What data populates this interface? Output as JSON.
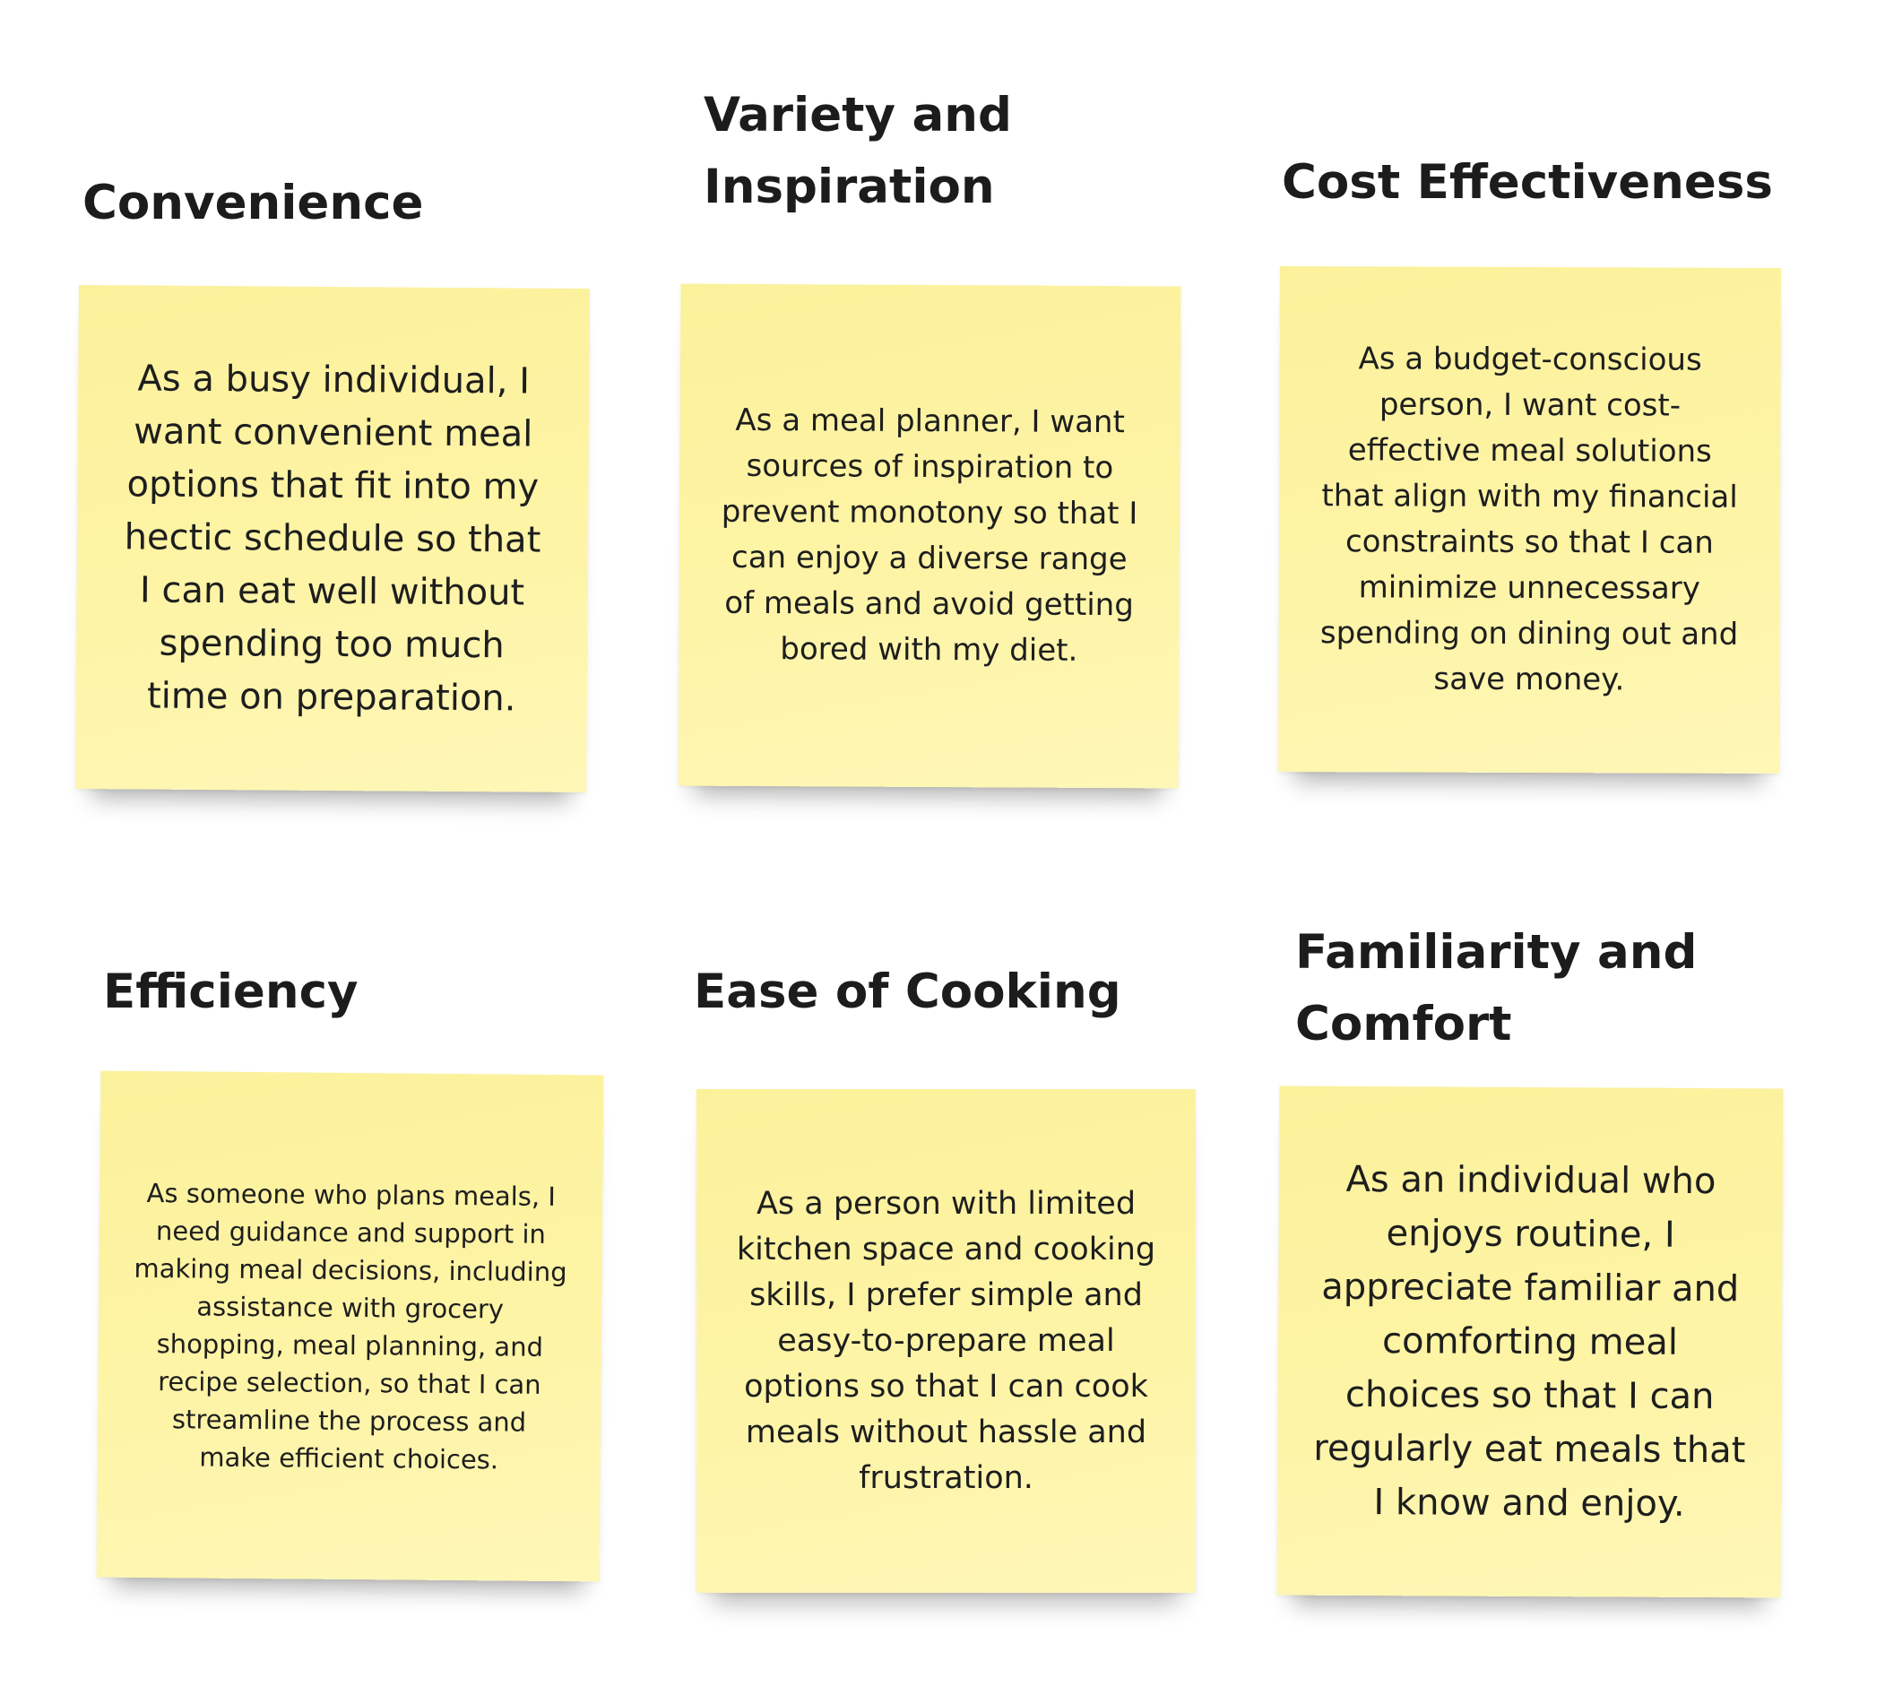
{
  "notes": [
    {
      "title": [
        "Convenience"
      ],
      "body": [
        "As a busy individual, I",
        "want convenient meal",
        "options that fit into my",
        "hectic schedule so that",
        "I can eat well without",
        "spending too much",
        "time on preparation."
      ]
    },
    {
      "title": [
        "Variety and",
        "Inspiration"
      ],
      "body": [
        "As a meal planner, I want",
        "sources of inspiration to",
        "prevent monotony so that I",
        "can enjoy a diverse range",
        "of meals and avoid getting",
        "bored with my diet."
      ]
    },
    {
      "title": [
        "Cost Effectiveness"
      ],
      "body": [
        "As a budget-conscious",
        "person, I want cost-",
        "effective meal solutions",
        "that align with my financial",
        "constraints so that I can",
        "minimize unnecessary",
        "spending on dining out and",
        "save money."
      ]
    },
    {
      "title": [
        "Efficiency"
      ],
      "body": [
        "As someone who plans meals, I",
        "need guidance and support in",
        "making meal decisions, including",
        "assistance with grocery",
        "shopping, meal planning, and",
        "recipe selection, so that I can",
        "streamline the process and",
        "make efficient choices."
      ]
    },
    {
      "title": [
        "Ease of Cooking"
      ],
      "body": [
        "As a person with limited",
        "kitchen space and cooking",
        "skills, I prefer simple and",
        "easy-to-prepare meal",
        "options so that I can cook",
        "meals without hassle and",
        "frustration."
      ]
    },
    {
      "title": [
        "Familiarity and",
        "Comfort"
      ],
      "body": [
        "As an individual who",
        "enjoys routine, I",
        "appreciate familiar and",
        "comforting meal",
        "choices so that I can",
        "regularly eat meals that",
        "I know and enjoy."
      ]
    }
  ]
}
